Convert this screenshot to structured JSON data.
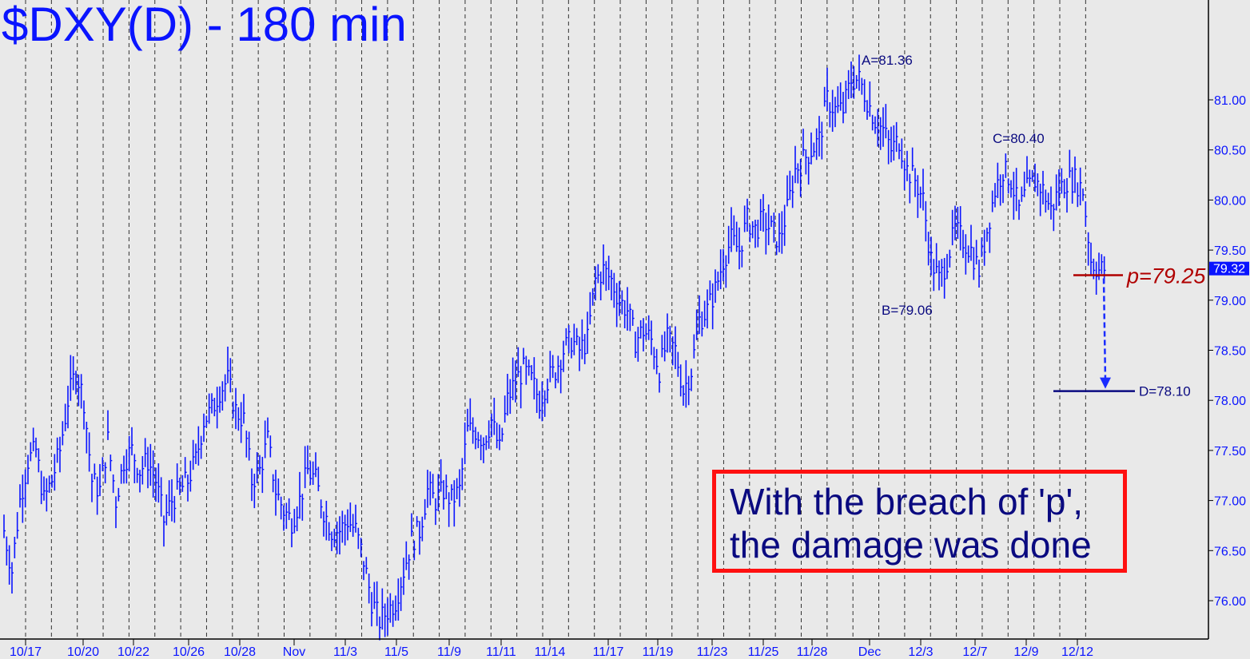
{
  "title": "$DXY(D) - 180 min",
  "chart_data": {
    "type": "bar",
    "subtype": "ohlc-price-bars",
    "title": "$DXY(D) - 180 min",
    "xlabel": "",
    "ylabel": "",
    "ylim": [
      75.6,
      81.5
    ],
    "y_ticks": [
      "76.00",
      "76.50",
      "77.00",
      "77.50",
      "78.00",
      "78.50",
      "79.00",
      "79.50",
      "80.00",
      "80.50",
      "81.00"
    ],
    "x_tick_labels": [
      "10/17",
      "10/20",
      "10/22",
      "10/26",
      "10/28",
      "Nov",
      "11/3",
      "11/5",
      "11/9",
      "11/11",
      "11/14",
      "11/17",
      "11/19",
      "11/23",
      "11/25",
      "11/28",
      "Dec",
      "12/3",
      "12/7",
      "12/9",
      "12/12"
    ],
    "grid": "vertical dashed",
    "series_color": "#0a14ff",
    "approx_prices": [
      76.7,
      76.3,
      77.0,
      77.4,
      77.5,
      77.0,
      77.2,
      77.5,
      78.0,
      78.3,
      78.0,
      77.2,
      77.1,
      77.6,
      77.0,
      77.4,
      77.5,
      77.3,
      77.4,
      77.2,
      76.8,
      77.0,
      77.1,
      77.2,
      77.4,
      77.8,
      77.9,
      78.1,
      78.2,
      77.9,
      77.8,
      77.2,
      77.3,
      77.6,
      77.1,
      76.9,
      76.8,
      77.0,
      77.3,
      77.2,
      76.9,
      76.7,
      76.7,
      76.8,
      76.7,
      76.4,
      76.0,
      75.8,
      75.9,
      76.0,
      76.3,
      76.6,
      76.7,
      77.1,
      77.0,
      77.1,
      77.0,
      77.1,
      77.7,
      77.7,
      77.6,
      77.8,
      77.5,
      78.0,
      78.2,
      78.3,
      78.2,
      78.0,
      78.2,
      78.3,
      78.5,
      78.6,
      78.5,
      78.6,
      79.2,
      79.3,
      79.2,
      79.0,
      78.9,
      78.6,
      78.7,
      78.6,
      78.3,
      78.6,
      78.5,
      78.1,
      78.3,
      78.8,
      78.9,
      79.1,
      79.4,
      79.6,
      79.5,
      79.8,
      79.7,
      79.8,
      79.7,
      79.6,
      79.9,
      80.3,
      80.4,
      80.5,
      80.6,
      81.0,
      80.9,
      80.9,
      81.2,
      81.2,
      81.0,
      80.8,
      80.7,
      80.5,
      80.6,
      80.3,
      80.2,
      80.0,
      79.4,
      79.2,
      79.4,
      79.7,
      79.6,
      79.5,
      79.3,
      79.7,
      80.1,
      80.3,
      80.2,
      79.9,
      80.1,
      80.2,
      80.1,
      79.9,
      80.1,
      80.2,
      80.2,
      80.1,
      79.4,
      79.3,
      79.32
    ],
    "last_price": "79.32",
    "annotations": {
      "A": "A=81.36",
      "B": "B=79.06",
      "C": "C=80.40",
      "D": "D=78.10",
      "p": "p=79.25"
    },
    "levels": {
      "p": 79.25,
      "D": 78.1,
      "A": 81.36,
      "B": 79.06,
      "C": 80.4
    },
    "colors": {
      "p_line": "#b00000",
      "d_line": "#0a0a80",
      "arrow": "#1a2cff",
      "last_badge": "#0a14ff"
    }
  },
  "note": "With the breach of 'p',\nthe damage was done"
}
